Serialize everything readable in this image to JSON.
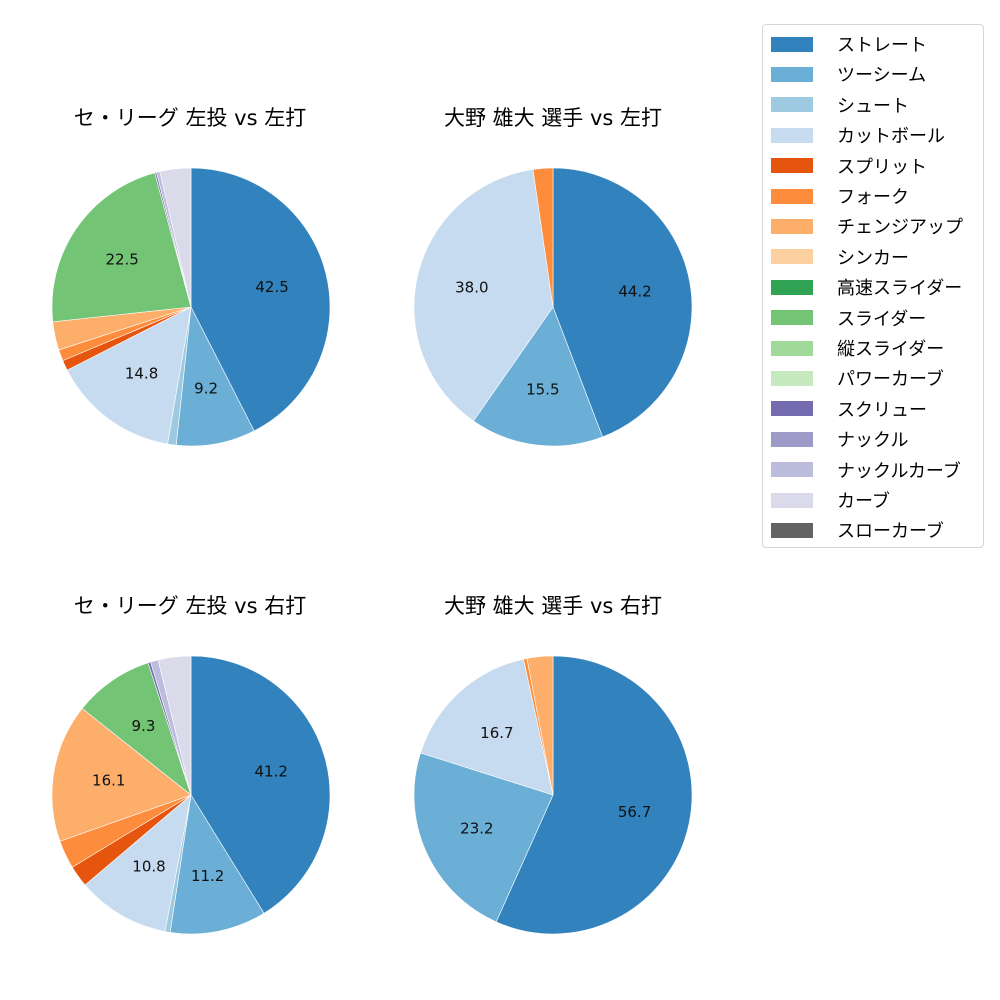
{
  "legend": {
    "items": [
      {
        "label": "ストレート",
        "color": "#3182bd"
      },
      {
        "label": "ツーシーム",
        "color": "#6baed6"
      },
      {
        "label": "シュート",
        "color": "#9ecae1"
      },
      {
        "label": "カットボール",
        "color": "#c6dbef"
      },
      {
        "label": "スプリット",
        "color": "#e6550d"
      },
      {
        "label": "フォーク",
        "color": "#fd8d3c"
      },
      {
        "label": "チェンジアップ",
        "color": "#fdae6b"
      },
      {
        "label": "シンカー",
        "color": "#fdd0a2"
      },
      {
        "label": "高速スライダー",
        "color": "#31a354"
      },
      {
        "label": "スライダー",
        "color": "#74c476"
      },
      {
        "label": "縦スライダー",
        "color": "#a1d99b"
      },
      {
        "label": "パワーカーブ",
        "color": "#c7e9c0"
      },
      {
        "label": "スクリュー",
        "color": "#756bb1"
      },
      {
        "label": "ナックル",
        "color": "#9e9ac8"
      },
      {
        "label": "ナックルカーブ",
        "color": "#bcbddc"
      },
      {
        "label": "カーブ",
        "color": "#dadaeb"
      },
      {
        "label": "スローカーブ",
        "color": "#636363"
      }
    ]
  },
  "chart_data": [
    {
      "type": "pie",
      "title": "セ・リーグ 左投 vs 左打",
      "start_angle": 90,
      "direction": "clockwise",
      "slices": [
        {
          "label": "ストレート",
          "value": 42.5,
          "shown": "42.5"
        },
        {
          "label": "ツーシーム",
          "value": 9.2,
          "shown": "9.2"
        },
        {
          "label": "シュート",
          "value": 1.0,
          "shown": ""
        },
        {
          "label": "カットボール",
          "value": 14.8,
          "shown": "14.8"
        },
        {
          "label": "スプリット",
          "value": 1.2,
          "shown": ""
        },
        {
          "label": "フォーク",
          "value": 1.3,
          "shown": ""
        },
        {
          "label": "チェンジアップ",
          "value": 3.3,
          "shown": ""
        },
        {
          "label": "スライダー",
          "value": 22.5,
          "shown": "22.5"
        },
        {
          "label": "スクリュー",
          "value": 0.2,
          "shown": ""
        },
        {
          "label": "ナックルカーブ",
          "value": 0.4,
          "shown": ""
        },
        {
          "label": "カーブ",
          "value": 3.6,
          "shown": ""
        }
      ]
    },
    {
      "type": "pie",
      "title": "大野 雄大 選手 vs 左打",
      "start_angle": 90,
      "direction": "clockwise",
      "slices": [
        {
          "label": "ストレート",
          "value": 44.2,
          "shown": "44.2"
        },
        {
          "label": "ツーシーム",
          "value": 15.5,
          "shown": "15.5"
        },
        {
          "label": "カットボール",
          "value": 38.0,
          "shown": "38.0"
        },
        {
          "label": "フォーク",
          "value": 2.3,
          "shown": ""
        }
      ]
    },
    {
      "type": "pie",
      "title": "セ・リーグ 左投 vs 右打",
      "start_angle": 90,
      "direction": "clockwise",
      "slices": [
        {
          "label": "ストレート",
          "value": 41.2,
          "shown": "41.2"
        },
        {
          "label": "ツーシーム",
          "value": 11.2,
          "shown": "11.2"
        },
        {
          "label": "シュート",
          "value": 0.6,
          "shown": ""
        },
        {
          "label": "カットボール",
          "value": 10.8,
          "shown": "10.8"
        },
        {
          "label": "スプリット",
          "value": 2.5,
          "shown": ""
        },
        {
          "label": "フォーク",
          "value": 3.3,
          "shown": ""
        },
        {
          "label": "チェンジアップ",
          "value": 16.1,
          "shown": "16.1"
        },
        {
          "label": "スライダー",
          "value": 9.3,
          "shown": "9.3"
        },
        {
          "label": "スクリュー",
          "value": 0.3,
          "shown": ""
        },
        {
          "label": "ナックルカーブ",
          "value": 0.9,
          "shown": ""
        },
        {
          "label": "カーブ",
          "value": 3.8,
          "shown": ""
        }
      ]
    },
    {
      "type": "pie",
      "title": "大野 雄大 選手 vs 右打",
      "start_angle": 90,
      "direction": "clockwise",
      "slices": [
        {
          "label": "ストレート",
          "value": 56.7,
          "shown": "56.7"
        },
        {
          "label": "ツーシーム",
          "value": 23.2,
          "shown": "23.2"
        },
        {
          "label": "カットボール",
          "value": 16.7,
          "shown": "16.7"
        },
        {
          "label": "フォーク",
          "value": 0.4,
          "shown": ""
        },
        {
          "label": "チェンジアップ",
          "value": 3.0,
          "shown": ""
        }
      ]
    }
  ]
}
